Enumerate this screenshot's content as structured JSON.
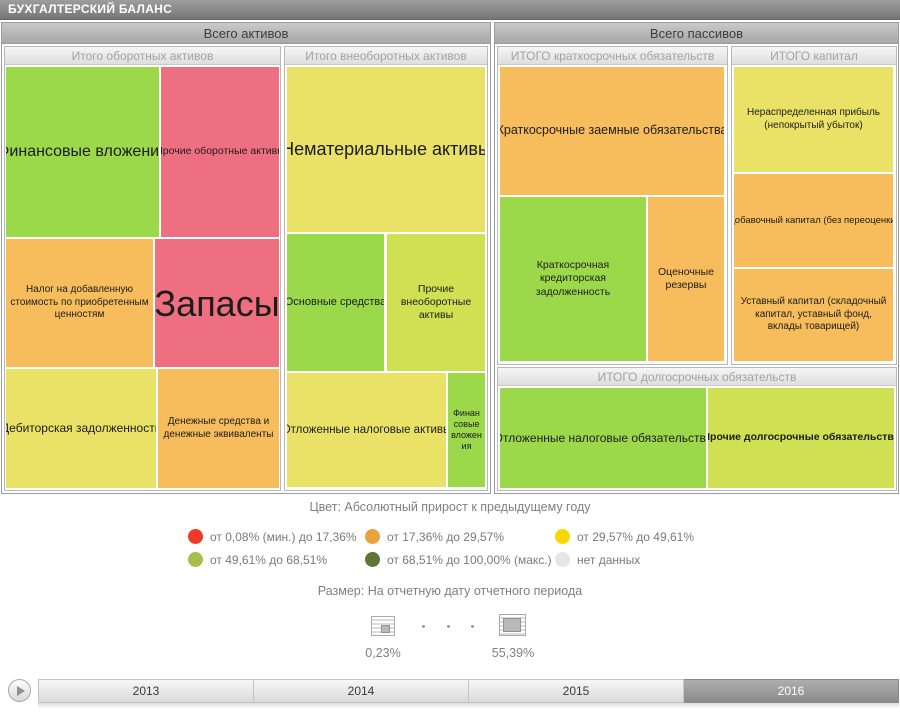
{
  "window": {
    "title": "БУХГАЛТЕРСКИЙ БАЛАНС"
  },
  "palette": {
    "green": "#9bd94a",
    "red": "#ee7080",
    "orange": "#f7bd5d",
    "yellow": "#eae167",
    "yellow_green": "#cfe052"
  },
  "assets": {
    "header": "Всего активов",
    "current": {
      "header": "Итого оборотных активов",
      "cells": [
        {
          "label": "Финансовые вложения",
          "color": "#9bd94a"
        },
        {
          "label": "Прочие оборотные активы",
          "color": "#ee7080"
        },
        {
          "label": "Налог на добавленную стоимость по приобретенным ценностям",
          "color": "#f7bd5d"
        },
        {
          "label": "Запасы",
          "color": "#ee7080"
        },
        {
          "label": "Дебиторская задолженность",
          "color": "#eae167"
        },
        {
          "label": "Денежные средства и денежные эквиваленты",
          "color": "#f7bd5d"
        }
      ]
    },
    "noncurrent": {
      "header": "Итого внеоборотных активов",
      "cells": [
        {
          "label": "Нематериальные активы",
          "color": "#eae167"
        },
        {
          "label": "Основные средства",
          "color": "#9bd94a"
        },
        {
          "label": "Прочие внеоборотные активы",
          "color": "#cfe052"
        },
        {
          "label": "Отложенные налоговые активы",
          "color": "#eae167"
        },
        {
          "label": "Финансовые вложения",
          "color": "#9bd94a"
        }
      ]
    }
  },
  "liabilities": {
    "header": "Всего пассивов",
    "shortterm": {
      "header": "ИТОГО краткосрочных обязательств",
      "cells": [
        {
          "label": "Краткосрочные заемные обязательства",
          "color": "#f7bd5d"
        },
        {
          "label": "Краткосрочная кредиторская задолженность",
          "color": "#9bd94a"
        },
        {
          "label": "Оценочные резервы",
          "color": "#f7bd5d"
        }
      ]
    },
    "capital": {
      "header": "ИТОГО капитал",
      "cells": [
        {
          "label": "Нераспределенная прибыль (непокрытый убыток)",
          "color": "#eae167"
        },
        {
          "label": "Добавочный капитал (без переоценки)",
          "color": "#f7bd5d"
        },
        {
          "label": "Уставный капитал (складочный капитал, уставный фонд, вклады товарищей)",
          "color": "#f7bd5d"
        }
      ]
    },
    "longterm": {
      "header": "ИТОГО долгосрочных обязательств",
      "cells": [
        {
          "label": "Отложенные налоговые обязательства",
          "color": "#9bd94a"
        },
        {
          "label": "Прочие долгосрочные обязательства",
          "color": "#cfe052"
        }
      ]
    }
  },
  "color_legend": {
    "title": "Цвет: Абсолютный прирост к предыдущему году",
    "items": [
      {
        "color": "#f13928",
        "label": "от 0,08% (мин.) до 17,36%"
      },
      {
        "color": "#e8a33b",
        "label": "от 17,36% до 29,57%"
      },
      {
        "color": "#f8d800",
        "label": "от 29,57% до 49,61%"
      },
      {
        "color": "#a4c04b",
        "label": "от 49,61% до 68,51%"
      },
      {
        "color": "#5c7733",
        "label": "от 68,51% до 100,00% (макс.)"
      },
      {
        "color": "#e6e6e6",
        "label": "нет данных"
      }
    ]
  },
  "size_legend": {
    "title": "Размер: На отчетную дату отчетного периода",
    "min": "0,23%",
    "max": "55,39%"
  },
  "timeline": {
    "years": [
      "2013",
      "2014",
      "2015",
      "2016"
    ],
    "selected": "2016"
  },
  "chart_data": {
    "type": "treemap",
    "title": "БУХГАЛТЕРСКИЙ БАЛАНС",
    "color_metric": "Абсолютный прирост к предыдущему году",
    "color_bins": [
      "от 0,08% (мин.) до 17,36%",
      "от 17,36% до 29,57%",
      "от 29,57% до 49,61%",
      "от 49,61% до 68,51%",
      "от 68,51% до 100,00% (макс.)",
      "нет данных"
    ],
    "size_metric": "На отчетную дату отчетного периода",
    "size_range_pct": [
      0.23,
      55.39
    ],
    "selected_period": "2016",
    "periods": [
      "2013",
      "2014",
      "2015",
      "2016"
    ],
    "groups": [
      {
        "name": "Всего активов",
        "children": [
          {
            "name": "Итого оборотных активов",
            "cells": [
              {
                "label": "Финансовые вложения",
                "color": "#9bd94a"
              },
              {
                "label": "Прочие оборотные активы",
                "color": "#ee7080"
              },
              {
                "label": "Налог на добавленную стоимость по приобретенным ценностям",
                "color": "#f7bd5d"
              },
              {
                "label": "Запасы",
                "color": "#ee7080"
              },
              {
                "label": "Дебиторская задолженность",
                "color": "#eae167"
              },
              {
                "label": "Денежные средства и денежные эквиваленты",
                "color": "#f7bd5d"
              }
            ]
          },
          {
            "name": "Итого внеоборотных активов",
            "cells": [
              {
                "label": "Нематериальные активы",
                "color": "#eae167"
              },
              {
                "label": "Основные средства",
                "color": "#9bd94a"
              },
              {
                "label": "Прочие внеоборотные активы",
                "color": "#cfe052"
              },
              {
                "label": "Отложенные налоговые активы",
                "color": "#eae167"
              },
              {
                "label": "Финансовые вложения",
                "color": "#9bd94a"
              }
            ]
          }
        ]
      },
      {
        "name": "Всего пассивов",
        "children": [
          {
            "name": "ИТОГО краткосрочных обязательств",
            "cells": [
              {
                "label": "Краткосрочные заемные обязательства",
                "color": "#f7bd5d"
              },
              {
                "label": "Краткосрочная кредиторская задолженность",
                "color": "#9bd94a"
              },
              {
                "label": "Оценочные резервы",
                "color": "#f7bd5d"
              }
            ]
          },
          {
            "name": "ИТОГО капитал",
            "cells": [
              {
                "label": "Нераспределенная прибыль (непокрытый убыток)",
                "color": "#eae167"
              },
              {
                "label": "Добавочный капитал (без переоценки)",
                "color": "#f7bd5d"
              },
              {
                "label": "Уставный капитал (складочный капитал, уставный фонд, вклады товарищей)",
                "color": "#f7bd5d"
              }
            ]
          },
          {
            "name": "ИТОГО долгосрочных обязательств",
            "cells": [
              {
                "label": "Отложенные налоговые обязательства",
                "color": "#9bd94a"
              },
              {
                "label": "Прочие долгосрочные обязательства",
                "color": "#cfe052"
              }
            ]
          }
        ]
      }
    ]
  }
}
